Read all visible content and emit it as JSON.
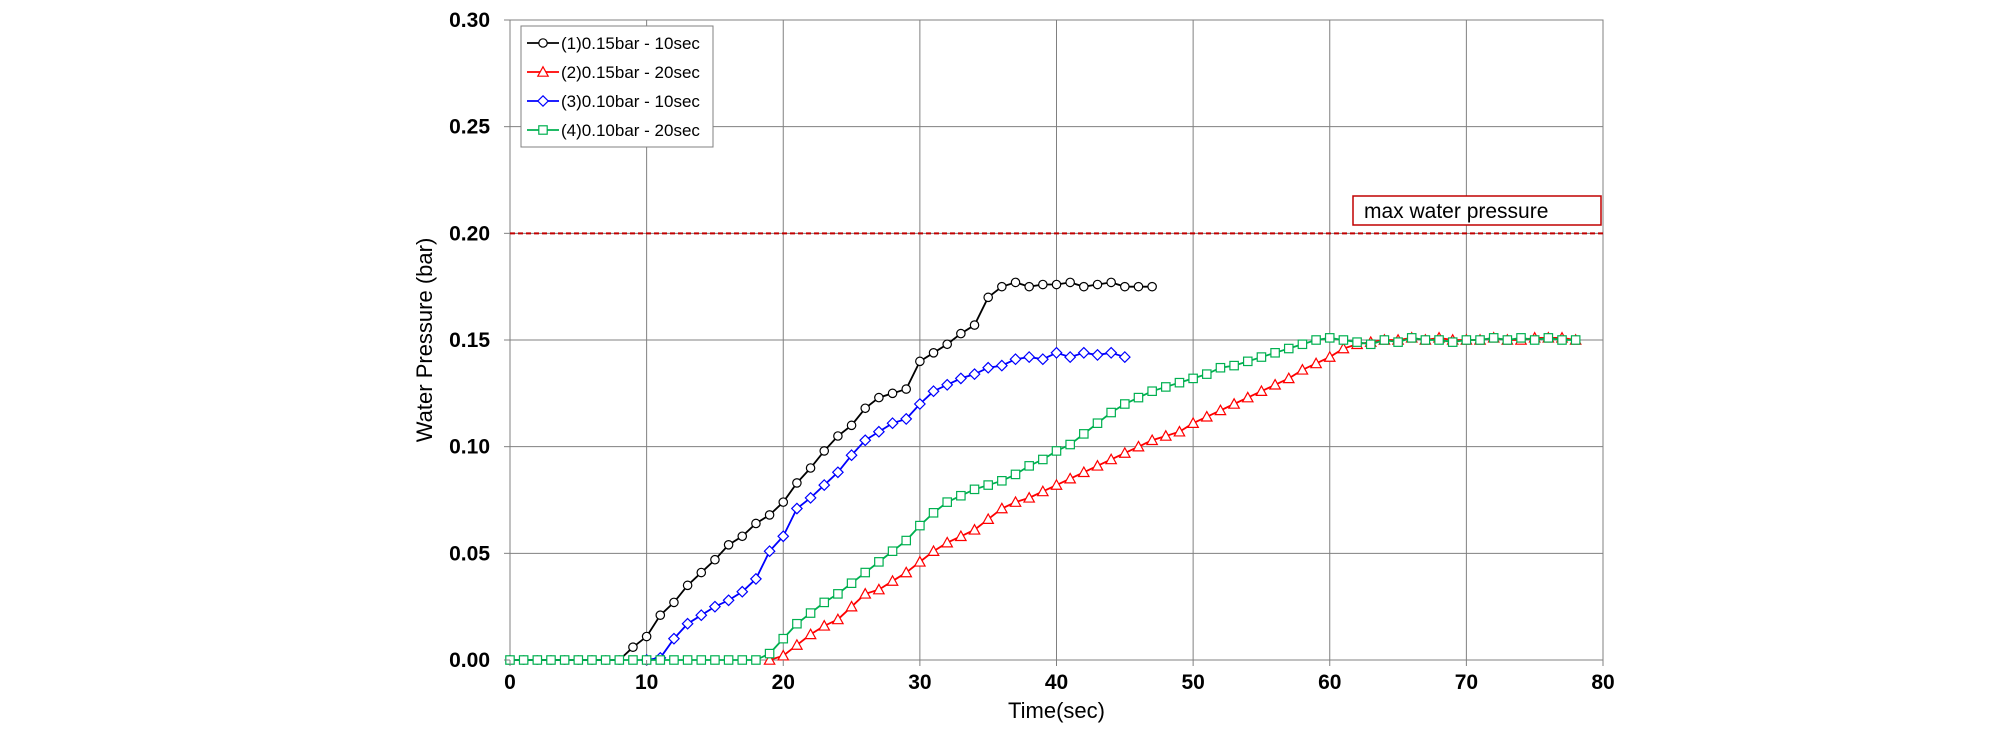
{
  "chart_data": {
    "type": "line",
    "title": "",
    "xlabel": "Time(sec)",
    "ylabel": "Water Pressure (bar)",
    "xlim": [
      0,
      80
    ],
    "ylim": [
      0,
      0.3
    ],
    "x_ticks": [
      0,
      10,
      20,
      30,
      40,
      50,
      60,
      70,
      80
    ],
    "x_tick_labels": [
      "0",
      "10",
      "20",
      "30",
      "40",
      "50",
      "60",
      "70",
      "80"
    ],
    "y_ticks": [
      0,
      0.05,
      0.1,
      0.15,
      0.2,
      0.25,
      0.3
    ],
    "y_tick_labels": [
      "0.00",
      "0.05",
      "0.10",
      "0.15",
      "0.20",
      "0.25",
      "0.30"
    ],
    "grid": true,
    "legend_position": "top-left",
    "reference_line": {
      "y": 0.2,
      "color": "#c00000",
      "style": "dashed",
      "label": "max  water pressure"
    },
    "series": [
      {
        "name": "(1)0.15bar - 10sec",
        "color": "#000000",
        "marker": "circle",
        "x": [
          0,
          1,
          2,
          3,
          4,
          5,
          6,
          7,
          8,
          9,
          10,
          11,
          12,
          13,
          14,
          15,
          16,
          17,
          18,
          19,
          20,
          21,
          22,
          23,
          24,
          25,
          26,
          27,
          28,
          29,
          30,
          31,
          32,
          33,
          34,
          35,
          36,
          37,
          38,
          39,
          40,
          41,
          42,
          43,
          44,
          45,
          46,
          47
        ],
        "y": [
          0,
          0,
          0,
          0,
          0,
          0,
          0,
          0,
          0,
          0.006,
          0.011,
          0.021,
          0.027,
          0.035,
          0.041,
          0.047,
          0.054,
          0.058,
          0.064,
          0.068,
          0.074,
          0.083,
          0.09,
          0.098,
          0.105,
          0.11,
          0.118,
          0.123,
          0.125,
          0.127,
          0.14,
          0.144,
          0.148,
          0.153,
          0.157,
          0.17,
          0.175,
          0.177,
          0.175,
          0.176,
          0.176,
          0.177,
          0.175,
          0.176,
          0.177,
          0.175,
          0.175,
          0.175
        ]
      },
      {
        "name": "(2)0.15bar - 20sec",
        "color": "#ff0000",
        "marker": "triangle",
        "x": [
          19,
          20,
          21,
          22,
          23,
          24,
          25,
          26,
          27,
          28,
          29,
          30,
          31,
          32,
          33,
          34,
          35,
          36,
          37,
          38,
          39,
          40,
          41,
          42,
          43,
          44,
          45,
          46,
          47,
          48,
          49,
          50,
          51,
          52,
          53,
          54,
          55,
          56,
          57,
          58,
          59,
          60,
          61,
          62,
          63,
          64,
          65,
          66,
          67,
          68,
          69,
          70,
          71,
          72,
          73,
          74,
          75,
          76,
          77,
          78
        ],
        "y": [
          0,
          0.002,
          0.007,
          0.012,
          0.016,
          0.019,
          0.025,
          0.031,
          0.033,
          0.037,
          0.041,
          0.046,
          0.051,
          0.055,
          0.058,
          0.061,
          0.066,
          0.071,
          0.074,
          0.076,
          0.079,
          0.082,
          0.085,
          0.088,
          0.091,
          0.094,
          0.097,
          0.1,
          0.103,
          0.105,
          0.107,
          0.111,
          0.114,
          0.117,
          0.12,
          0.123,
          0.126,
          0.129,
          0.132,
          0.136,
          0.139,
          0.142,
          0.146,
          0.148,
          0.149,
          0.15,
          0.15,
          0.151,
          0.15,
          0.151,
          0.15,
          0.15,
          0.15,
          0.151,
          0.15,
          0.15,
          0.151,
          0.151,
          0.151,
          0.15
        ]
      },
      {
        "name": "(3)0.10bar - 10sec",
        "color": "#0000ff",
        "marker": "diamond",
        "x": [
          10,
          11,
          12,
          13,
          14,
          15,
          16,
          17,
          18,
          19,
          20,
          21,
          22,
          23,
          24,
          25,
          26,
          27,
          28,
          29,
          30,
          31,
          32,
          33,
          34,
          35,
          36,
          37,
          38,
          39,
          40,
          41,
          42,
          43,
          44,
          45
        ],
        "y": [
          0,
          0.001,
          0.01,
          0.017,
          0.021,
          0.025,
          0.028,
          0.032,
          0.038,
          0.051,
          0.058,
          0.071,
          0.076,
          0.082,
          0.088,
          0.096,
          0.103,
          0.107,
          0.111,
          0.113,
          0.12,
          0.126,
          0.129,
          0.132,
          0.134,
          0.137,
          0.138,
          0.141,
          0.142,
          0.141,
          0.144,
          0.142,
          0.144,
          0.143,
          0.144,
          0.142
        ]
      },
      {
        "name": "(4)0.10bar - 20sec",
        "color": "#00b050",
        "marker": "square",
        "x": [
          0,
          1,
          2,
          3,
          4,
          5,
          6,
          7,
          8,
          9,
          10,
          11,
          12,
          13,
          14,
          15,
          16,
          17,
          18,
          19,
          20,
          21,
          22,
          23,
          24,
          25,
          26,
          27,
          28,
          29,
          30,
          31,
          32,
          33,
          34,
          35,
          36,
          37,
          38,
          39,
          40,
          41,
          42,
          43,
          44,
          45,
          46,
          47,
          48,
          49,
          50,
          51,
          52,
          53,
          54,
          55,
          56,
          57,
          58,
          59,
          60,
          61,
          62,
          63,
          64,
          65,
          66,
          67,
          68,
          69,
          70,
          71,
          72,
          73,
          74,
          75,
          76,
          77,
          78
        ],
        "y": [
          0,
          0,
          0,
          0,
          0,
          0,
          0,
          0,
          0,
          0,
          0,
          0,
          0,
          0,
          0,
          0,
          0,
          0,
          0,
          0.003,
          0.01,
          0.017,
          0.022,
          0.027,
          0.031,
          0.036,
          0.041,
          0.046,
          0.051,
          0.056,
          0.063,
          0.069,
          0.074,
          0.077,
          0.08,
          0.082,
          0.084,
          0.087,
          0.091,
          0.094,
          0.098,
          0.101,
          0.106,
          0.111,
          0.116,
          0.12,
          0.123,
          0.126,
          0.128,
          0.13,
          0.132,
          0.134,
          0.137,
          0.138,
          0.14,
          0.142,
          0.144,
          0.146,
          0.148,
          0.15,
          0.151,
          0.15,
          0.149,
          0.148,
          0.15,
          0.149,
          0.151,
          0.15,
          0.15,
          0.149,
          0.15,
          0.15,
          0.151,
          0.15,
          0.151,
          0.15,
          0.151,
          0.15,
          0.15
        ]
      }
    ]
  }
}
